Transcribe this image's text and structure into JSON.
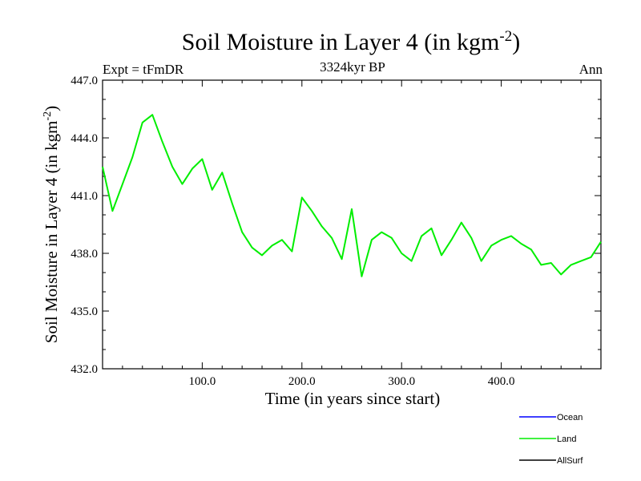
{
  "chart_data": {
    "type": "line",
    "title": "Soil Moisture in Layer 4 (in kgm",
    "title_sup": "-2",
    "title_close": ")",
    "subtitle": "3324kyr BP",
    "left_label": "Expt = tFmDR",
    "right_label": "Ann",
    "xlabel": "Time (in years since start)",
    "ylabel": "Soil Moisture in Layer 4 (in kgm",
    "ylabel_sup": "-2",
    "ylabel_close": ")",
    "xlim": [
      0,
      500
    ],
    "ylim": [
      432.0,
      447.0
    ],
    "xticks": [
      100,
      200,
      300,
      400
    ],
    "xtick_labels": [
      "100.0",
      "200.0",
      "300.0",
      "400.0"
    ],
    "yticks": [
      432,
      435,
      438,
      441,
      444,
      447
    ],
    "ytick_labels": [
      "432.0",
      "435.0",
      "438.0",
      "441.0",
      "444.0",
      "447.0"
    ],
    "legend": [
      {
        "name": "Ocean",
        "color": "#0000ff"
      },
      {
        "name": "Land",
        "color": "#00ee00"
      },
      {
        "name": "AllSurf",
        "color": "#000000"
      }
    ],
    "series": [
      {
        "name": "Land",
        "color": "#00ee00",
        "x": [
          0,
          10,
          20,
          30,
          40,
          50,
          60,
          70,
          80,
          90,
          100,
          110,
          120,
          130,
          140,
          150,
          160,
          170,
          180,
          190,
          200,
          210,
          220,
          230,
          240,
          250,
          260,
          270,
          280,
          290,
          300,
          310,
          320,
          330,
          340,
          350,
          360,
          370,
          380,
          390,
          400,
          410,
          420,
          430,
          440,
          450,
          460,
          470,
          480,
          490,
          500
        ],
        "values": [
          442.5,
          440.2,
          441.6,
          443.0,
          444.8,
          445.2,
          443.8,
          442.5,
          441.6,
          442.4,
          442.9,
          441.3,
          442.2,
          440.6,
          439.1,
          438.3,
          437.9,
          438.4,
          438.7,
          438.1,
          440.9,
          440.2,
          439.4,
          438.8,
          437.7,
          440.3,
          436.8,
          438.7,
          439.1,
          438.8,
          438.0,
          437.6,
          438.9,
          439.3,
          437.9,
          438.7,
          439.6,
          438.8,
          437.6,
          438.4,
          438.7,
          438.9,
          438.5,
          438.2,
          437.4,
          437.5,
          436.9,
          437.4,
          437.6,
          437.8,
          438.6
        ]
      }
    ]
  }
}
